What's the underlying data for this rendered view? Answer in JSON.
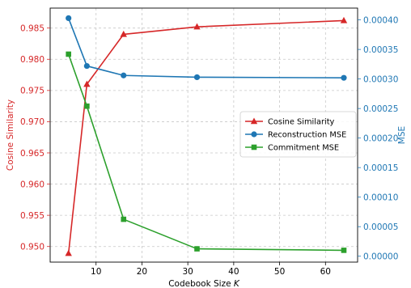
{
  "chart_data": {
    "type": "line",
    "title": "",
    "xlabel": "Codebook Size K",
    "xlabel_parts": [
      "Codebook Size ",
      "K"
    ],
    "x": [
      4,
      8,
      16,
      32,
      64
    ],
    "xlim": [
      0,
      67
    ],
    "xticks": [
      10,
      20,
      30,
      40,
      50,
      60
    ],
    "y_left": {
      "label": "Cosine Similarity",
      "color": "#d62728",
      "lim": [
        0.9475,
        0.9882
      ],
      "ticks": [
        0.95,
        0.955,
        0.96,
        0.965,
        0.97,
        0.975,
        0.98,
        0.985
      ],
      "tick_decimals": 3
    },
    "y_right": {
      "label": "MSE",
      "color": "#1f77b4",
      "lim": [
        -1e-05,
        0.00042
      ],
      "ticks": [
        0.0,
        5e-05,
        0.0001,
        0.00015,
        0.0002,
        0.00025,
        0.0003,
        0.00035,
        0.0004
      ],
      "tick_decimals": 5
    },
    "grid": true,
    "legend_position": "center-right",
    "series": [
      {
        "name": "Cosine Similarity",
        "axis": "left",
        "color": "#d62728",
        "marker": "triangle",
        "values": [
          0.9489,
          0.976,
          0.984,
          0.9852,
          0.9862
        ]
      },
      {
        "name": "Reconstruction MSE",
        "axis": "right",
        "color": "#1f77b4",
        "marker": "circle",
        "values": [
          0.000403,
          0.000322,
          0.000306,
          0.000303,
          0.000302
        ]
      },
      {
        "name": "Commitment MSE",
        "axis": "right",
        "color": "#2ca02c",
        "marker": "square",
        "values": [
          0.000342,
          0.000254,
          6.25e-05,
          1.25e-05,
          1e-05
        ]
      }
    ]
  }
}
